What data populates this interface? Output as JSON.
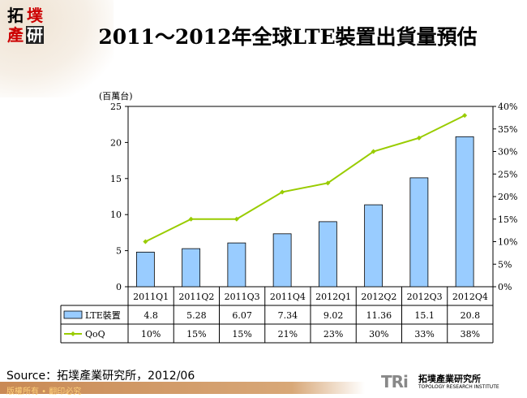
{
  "logo": {
    "chars": [
      "拓",
      "墣",
      "產",
      "研"
    ]
  },
  "title": "2011～2012年全球LTE裝置出貨量預估",
  "chart_data": {
    "type": "bar+line",
    "categories": [
      "2011Q1",
      "2011Q2",
      "2011Q3",
      "2011Q4",
      "2012Q1",
      "2012Q2",
      "2012Q3",
      "2012Q4"
    ],
    "series": [
      {
        "name": "LTE裝置",
        "type": "bar",
        "axis": "left",
        "color": "#99ccff",
        "values": [
          4.8,
          5.28,
          6.07,
          7.34,
          9.02,
          11.36,
          15.1,
          20.8
        ],
        "labels": [
          "4.8",
          "5.28",
          "6.07",
          "7.34",
          "9.02",
          "11.36",
          "15.1",
          "20.8"
        ]
      },
      {
        "name": "QoQ",
        "type": "line",
        "axis": "right",
        "color": "#99cc00",
        "values": [
          10,
          15,
          15,
          21,
          23,
          30,
          33,
          38
        ],
        "labels": [
          "10%",
          "15%",
          "15%",
          "21%",
          "23%",
          "30%",
          "33%",
          "38%"
        ]
      }
    ],
    "ylabel": "(百萬台)",
    "ylim": [
      0,
      25
    ],
    "yticks": [
      "0",
      "5",
      "10",
      "15",
      "20",
      "25"
    ],
    "y2lim": [
      0,
      40
    ],
    "y2ticks": [
      "0%",
      "5%",
      "10%",
      "15%",
      "20%",
      "25%",
      "30%",
      "35%",
      "40%"
    ],
    "data_table": true,
    "grid": false
  },
  "source": "Source：拓墣產業研究所，2012/06",
  "footer": "版權所有 • 翻印必究",
  "brand": {
    "mark": "TRi",
    "name_cn": "拓墣產業研究所",
    "name_en": "TOPOLOGY RESEARCH INSTITUTE"
  }
}
